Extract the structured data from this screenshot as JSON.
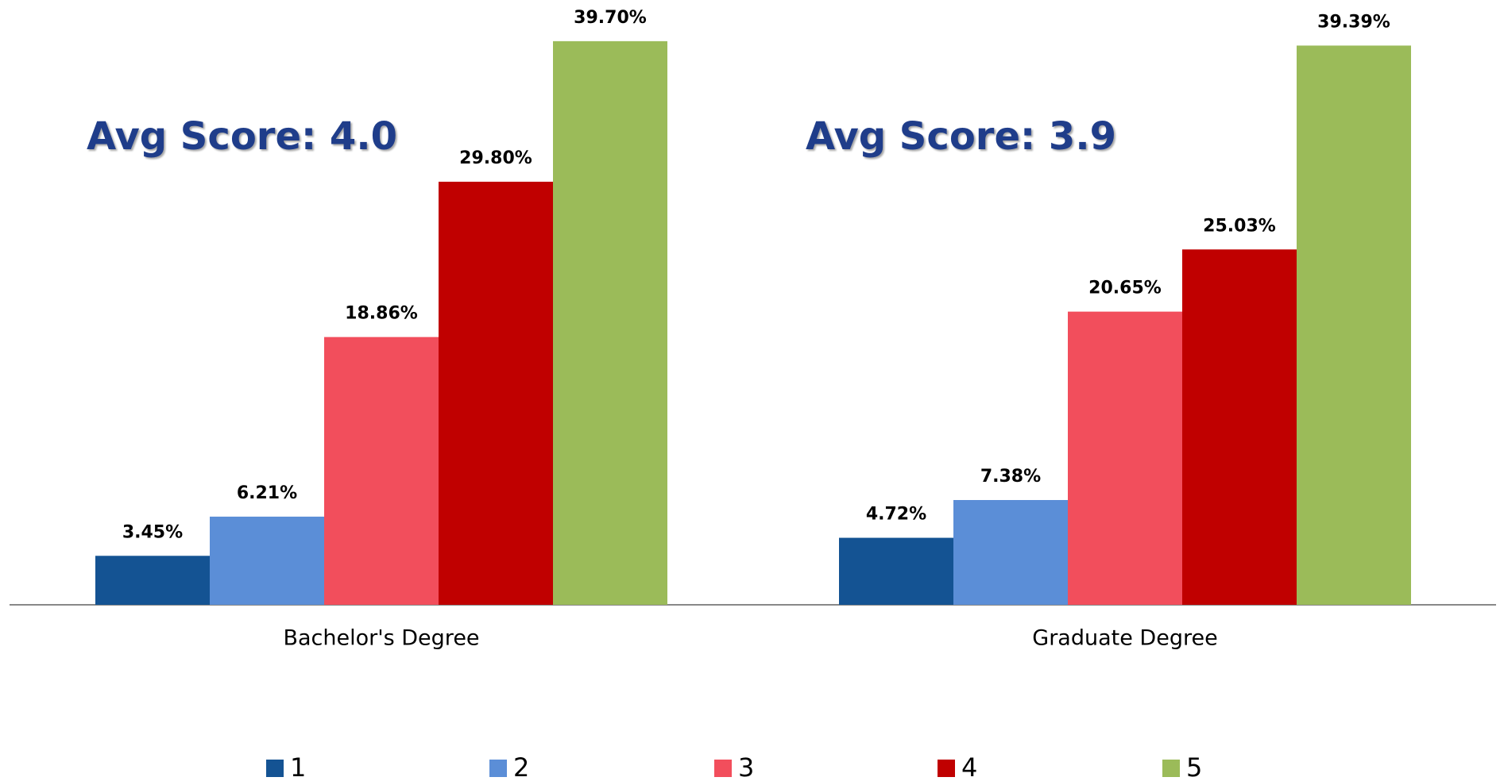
{
  "chart_data": {
    "type": "bar",
    "categories": [
      "Bachelor's Degree",
      "Graduate Degree"
    ],
    "series": [
      {
        "name": "1",
        "color": "#145393",
        "values": [
          3.45,
          4.72
        ],
        "value_labels": [
          "3.45%",
          "4.72%"
        ]
      },
      {
        "name": "2",
        "color": "#5b8ed7",
        "values": [
          6.21,
          7.38
        ],
        "value_labels": [
          "6.21%",
          "7.38%"
        ]
      },
      {
        "name": "3",
        "color": "#f24e5c",
        "values": [
          18.86,
          20.65
        ],
        "value_labels": [
          "18.86%",
          "20.65%"
        ]
      },
      {
        "name": "4",
        "color": "#c00000",
        "values": [
          29.8,
          25.03
        ],
        "value_labels": [
          "29.80%",
          "25.03%"
        ]
      },
      {
        "name": "5",
        "color": "#9bbb59",
        "values": [
          39.7,
          39.39
        ],
        "value_labels": [
          "39.70%",
          "39.39%"
        ]
      }
    ],
    "annotations": [
      "Avg Score: 4.0",
      "Avg Score: 3.9"
    ],
    "ylim": [
      0,
      42.6
    ],
    "legend": "bottom"
  }
}
